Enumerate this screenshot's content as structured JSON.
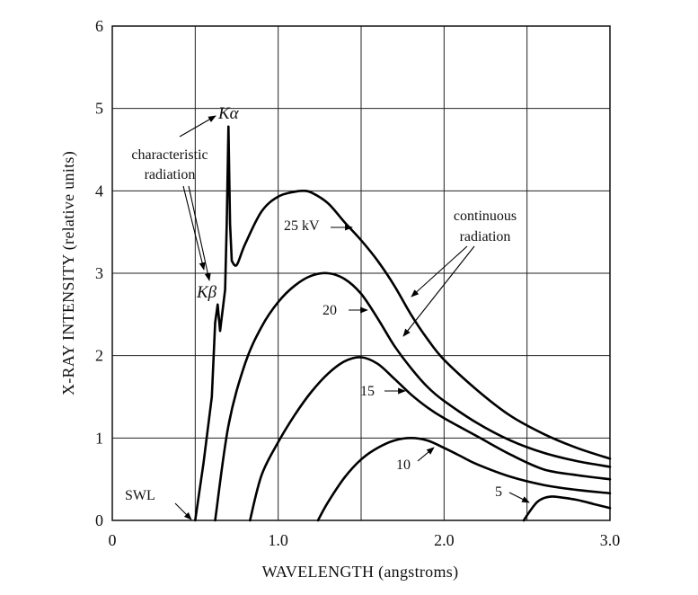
{
  "chart_data": {
    "type": "line",
    "xlabel": "WAVELENGTH (angstroms)",
    "ylabel": "X-RAY INTENSITY (relative units)",
    "xlim": [
      0,
      3.0
    ],
    "ylim": [
      0,
      6
    ],
    "x_ticks": [
      "0",
      "1.0",
      "2.0",
      "3.0"
    ],
    "y_ticks": [
      "0",
      "1",
      "2",
      "3",
      "4",
      "5",
      "6"
    ],
    "grid": true,
    "series": [
      {
        "name": "25 kV",
        "x": [
          0.5,
          0.55,
          0.6,
          0.62,
          0.635,
          0.65,
          0.68,
          0.69,
          0.7,
          0.71,
          0.72,
          0.75,
          0.8,
          0.9,
          1.0,
          1.1,
          1.15,
          1.2,
          1.3,
          1.4,
          1.5,
          1.6,
          1.7,
          1.8,
          1.9,
          2.0,
          2.2,
          2.4,
          2.6,
          2.8,
          3.0
        ],
        "y": [
          0.0,
          0.7,
          1.5,
          2.4,
          2.62,
          2.3,
          2.8,
          3.6,
          4.78,
          3.6,
          3.15,
          3.1,
          3.35,
          3.75,
          3.93,
          3.99,
          4.0,
          3.98,
          3.85,
          3.62,
          3.4,
          3.15,
          2.85,
          2.5,
          2.2,
          1.95,
          1.58,
          1.27,
          1.05,
          0.88,
          0.75
        ]
      },
      {
        "name": "20",
        "x": [
          0.62,
          0.7,
          0.8,
          0.9,
          1.0,
          1.1,
          1.2,
          1.3,
          1.4,
          1.5,
          1.6,
          1.7,
          1.8,
          1.9,
          2.0,
          2.2,
          2.4,
          2.6,
          2.8,
          3.0
        ],
        "y": [
          0.0,
          1.15,
          1.9,
          2.35,
          2.65,
          2.85,
          2.97,
          3.0,
          2.93,
          2.75,
          2.45,
          2.12,
          1.85,
          1.62,
          1.45,
          1.18,
          0.97,
          0.82,
          0.72,
          0.65
        ]
      },
      {
        "name": "15",
        "x": [
          0.83,
          0.9,
          1.0,
          1.1,
          1.2,
          1.3,
          1.4,
          1.5,
          1.6,
          1.7,
          1.8,
          1.9,
          2.0,
          2.2,
          2.4,
          2.6,
          2.8,
          3.0
        ],
        "y": [
          0.0,
          0.55,
          0.95,
          1.28,
          1.56,
          1.78,
          1.93,
          1.98,
          1.9,
          1.72,
          1.53,
          1.37,
          1.24,
          1.02,
          0.8,
          0.62,
          0.55,
          0.5
        ]
      },
      {
        "name": "10",
        "x": [
          1.24,
          1.3,
          1.4,
          1.5,
          1.6,
          1.7,
          1.8,
          1.9,
          2.0,
          2.1,
          2.2,
          2.4,
          2.6,
          2.8,
          3.0
        ],
        "y": [
          0.0,
          0.22,
          0.52,
          0.74,
          0.88,
          0.97,
          1.0,
          0.97,
          0.88,
          0.78,
          0.68,
          0.53,
          0.43,
          0.37,
          0.33
        ]
      },
      {
        "name": "5",
        "x": [
          2.48,
          2.52,
          2.56,
          2.6,
          2.65,
          2.7,
          2.8,
          2.9,
          3.0
        ],
        "y": [
          0.0,
          0.12,
          0.22,
          0.27,
          0.29,
          0.28,
          0.25,
          0.2,
          0.15
        ]
      }
    ],
    "annotations": {
      "ka": "Kα",
      "kb": "Kβ",
      "characteristic_1": "characteristic",
      "characteristic_2": "radiation",
      "continuous_1": "continuous",
      "continuous_2": "radiation",
      "label_25": "25 kV",
      "label_20": "20",
      "label_15": "15",
      "label_10": "10",
      "label_5": "5",
      "swl": "SWL"
    }
  }
}
